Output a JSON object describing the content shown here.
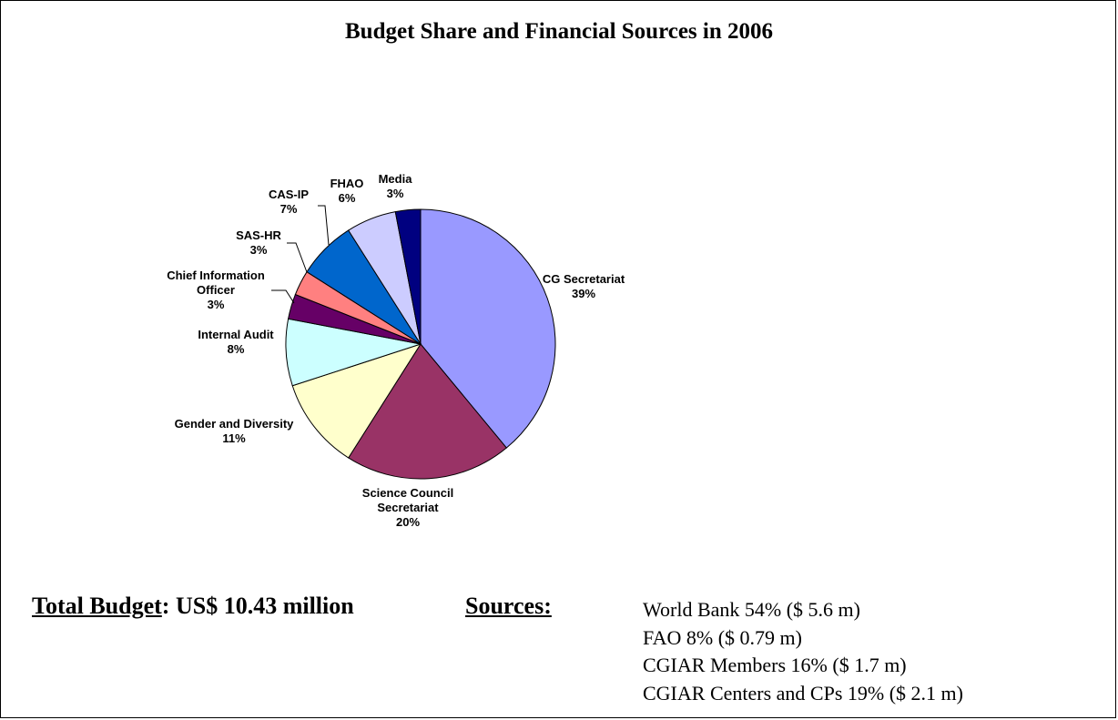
{
  "title": "Budget Share and Financial Sources in 2006",
  "chart_data": {
    "type": "pie",
    "title": "Budget Share and Financial Sources in 2006",
    "slices": [
      {
        "label_lines": [
          "CG Secretariat"
        ],
        "pct_text": "39%",
        "value": 39,
        "color": "#9999ff"
      },
      {
        "label_lines": [
          "Science Council",
          "Secretariat"
        ],
        "pct_text": "20%",
        "value": 20,
        "color": "#993366"
      },
      {
        "label_lines": [
          "Gender and Diversity"
        ],
        "pct_text": "11%",
        "value": 11,
        "color": "#ffffcc"
      },
      {
        "label_lines": [
          "Internal Audit"
        ],
        "pct_text": "8%",
        "value": 8,
        "color": "#ccffff"
      },
      {
        "label_lines": [
          "Chief Information",
          "Officer"
        ],
        "pct_text": "3%",
        "value": 3,
        "color": "#660066"
      },
      {
        "label_lines": [
          "SAS-HR"
        ],
        "pct_text": "3%",
        "value": 3,
        "color": "#ff8080"
      },
      {
        "label_lines": [
          "CAS-IP"
        ],
        "pct_text": "7%",
        "value": 7,
        "color": "#0066cc"
      },
      {
        "label_lines": [
          "FHAO"
        ],
        "pct_text": "6%",
        "value": 6,
        "color": "#ccccff"
      },
      {
        "label_lines": [
          "Media"
        ],
        "pct_text": "3%",
        "value": 3,
        "color": "#000080"
      }
    ],
    "start_angle_deg": 0,
    "direction": "clockwise",
    "legend": "none"
  },
  "footer": {
    "total_label": "Total Budget",
    "total_value": ": US$ 10.43 million",
    "sources_label": "Sources:",
    "sources": [
      "World Bank 54% ($ 5.6 m)",
      "FAO 8% ($ 0.79 m)",
      "CGIAR Members 16% ($ 1.7 m)",
      "CGIAR Centers and CPs 19% ($ 2.1 m)"
    ]
  }
}
